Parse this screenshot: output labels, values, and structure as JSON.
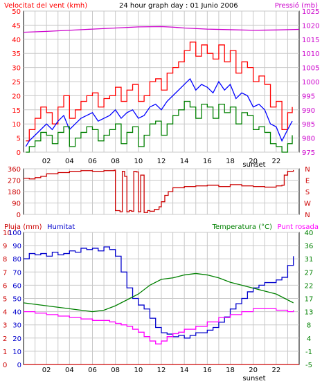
{
  "colors": {
    "background": "#ffffff",
    "frame": "#000000",
    "grid": "#c8c8c8",
    "wind_speed": "#ff0000",
    "wind_avg": "#0000ff",
    "wind_min": "#008000",
    "pressure": "#cc00cc",
    "direction": "#cc0000",
    "humidity": "#0000cc",
    "temperature": "#008000",
    "dewpoint": "#ff00ff",
    "rain": "#cc0000"
  },
  "chart_data": [
    {
      "type": "line",
      "panel": "wind-pressure",
      "title": "24 hour graph day : 01 Junio 2006",
      "left_axis_label": "Velocitat del vent (kmh)",
      "right_axis_label": "Pressió (mb)",
      "x_ticks": [
        "02",
        "04",
        "06",
        "08",
        "10",
        "12",
        "14",
        "16",
        "18",
        "20",
        "22"
      ],
      "x_marker": "sunset",
      "x_range": [
        0,
        24
      ],
      "ylim": [
        0,
        50
      ],
      "yticks": [
        0,
        5,
        10,
        15,
        20,
        25,
        30,
        35,
        40,
        45,
        50
      ],
      "y2lim": [
        975,
        1025
      ],
      "y2ticks": [
        975,
        980,
        985,
        990,
        995,
        1000,
        1005,
        1010,
        1015,
        1020,
        1025
      ],
      "grid": true,
      "series": [
        {
          "key": "gust",
          "color": "wind_speed",
          "axis": "left",
          "step": true,
          "x": [
            0.2,
            0.5,
            1.0,
            1.5,
            2.0,
            2.5,
            3.0,
            3.5,
            4.0,
            4.5,
            5.0,
            5.5,
            6.0,
            6.5,
            7.0,
            7.5,
            8.0,
            8.5,
            9.0,
            9.5,
            10.0,
            10.5,
            11.0,
            11.5,
            12.0,
            12.5,
            13.0,
            13.5,
            14.0,
            14.5,
            15.0,
            15.5,
            16.0,
            16.5,
            17.0,
            17.5,
            18.0,
            18.5,
            19.0,
            19.5,
            20.0,
            20.5,
            21.0,
            21.5,
            22.0,
            22.5,
            23.0,
            23.4
          ],
          "y": [
            4,
            8,
            12,
            16,
            14,
            10,
            16,
            20,
            12,
            15,
            18,
            20,
            21,
            16,
            19,
            20,
            23,
            18,
            22,
            24,
            18,
            20,
            25,
            26,
            22,
            28,
            30,
            32,
            36,
            39,
            34,
            38,
            35,
            33,
            38,
            32,
            36,
            28,
            32,
            30,
            25,
            27,
            24,
            16,
            18,
            8,
            14,
            16
          ]
        },
        {
          "key": "avg",
          "color": "wind_avg",
          "axis": "left",
          "step": false,
          "x": [
            0.2,
            0.5,
            1.0,
            1.5,
            2.0,
            2.5,
            3.0,
            3.5,
            4.0,
            4.5,
            5.0,
            5.5,
            6.0,
            6.5,
            7.0,
            7.5,
            8.0,
            8.5,
            9.0,
            9.5,
            10.0,
            10.5,
            11.0,
            11.5,
            12.0,
            12.5,
            13.0,
            13.5,
            14.0,
            14.5,
            15.0,
            15.5,
            16.0,
            16.5,
            17.0,
            17.5,
            18.0,
            18.5,
            19.0,
            19.5,
            20.0,
            20.5,
            21.0,
            21.5,
            22.0,
            22.5,
            23.0,
            23.4
          ],
          "y": [
            2,
            4,
            6,
            8,
            10,
            8,
            11,
            13,
            8,
            10,
            12,
            13,
            14,
            11,
            12,
            13,
            15,
            12,
            14,
            15,
            12,
            13,
            16,
            17,
            15,
            18,
            20,
            22,
            24,
            26,
            22,
            24,
            23,
            21,
            25,
            22,
            24,
            19,
            21,
            20,
            16,
            17,
            15,
            10,
            9,
            4,
            8,
            11
          ]
        },
        {
          "key": "low",
          "color": "wind_min",
          "axis": "left",
          "step": true,
          "x": [
            0.2,
            0.5,
            1.0,
            1.5,
            2.0,
            2.5,
            3.0,
            3.5,
            4.0,
            4.5,
            5.0,
            5.5,
            6.0,
            6.5,
            7.0,
            7.5,
            8.0,
            8.5,
            9.0,
            9.5,
            10.0,
            10.5,
            11.0,
            11.5,
            12.0,
            12.5,
            13.0,
            13.5,
            14.0,
            14.5,
            15.0,
            15.5,
            16.0,
            16.5,
            17.0,
            17.5,
            18.0,
            18.5,
            19.0,
            19.5,
            20.0,
            20.5,
            21.0,
            21.5,
            22.0,
            22.5,
            23.0,
            23.4
          ],
          "y": [
            0,
            2,
            4,
            7,
            6,
            3,
            7,
            9,
            2,
            5,
            7,
            9,
            8,
            4,
            6,
            8,
            10,
            3,
            7,
            9,
            2,
            6,
            10,
            11,
            6,
            10,
            13,
            15,
            18,
            16,
            12,
            17,
            16,
            12,
            17,
            14,
            16,
            10,
            14,
            13,
            8,
            9,
            7,
            3,
            2,
            0,
            3,
            6
          ]
        },
        {
          "key": "pressure",
          "color": "pressure",
          "axis": "right",
          "step": false,
          "x": [
            0,
            2,
            4,
            6,
            8,
            10,
            12,
            13,
            14,
            16,
            18,
            20,
            22,
            24
          ],
          "y": [
            1017.5,
            1017.8,
            1018.2,
            1018.6,
            1019.0,
            1019.4,
            1019.5,
            1019.3,
            1019.0,
            1018.6,
            1018.4,
            1018.2,
            1018.3,
            1018.5
          ]
        }
      ]
    },
    {
      "type": "line",
      "panel": "wind-direction",
      "x_range": [
        0,
        24
      ],
      "ylim": [
        0,
        360
      ],
      "yticks": [
        0,
        90,
        180,
        270,
        360
      ],
      "right_labels": [
        "N",
        "W",
        "S",
        "E",
        "N"
      ],
      "grid": true,
      "series": [
        {
          "key": "direction",
          "color": "direction",
          "step": true,
          "x": [
            0,
            0.5,
            1.0,
            1.5,
            2.0,
            3.0,
            4.0,
            5.0,
            6.0,
            7.0,
            7.9,
            8.0,
            8.4,
            8.6,
            8.8,
            9.0,
            9.2,
            9.4,
            9.6,
            9.8,
            10.0,
            10.2,
            10.5,
            10.8,
            11.0,
            11.4,
            11.8,
            12.0,
            12.3,
            12.6,
            13.0,
            14.0,
            15.0,
            16.0,
            17.0,
            18.0,
            19.0,
            20.0,
            21.0,
            22.0,
            22.5,
            22.7,
            23.0,
            23.5
          ],
          "y": [
            285,
            280,
            290,
            300,
            320,
            330,
            340,
            345,
            340,
            345,
            348,
            30,
            20,
            340,
            300,
            20,
            30,
            25,
            340,
            335,
            20,
            310,
            15,
            30,
            25,
            40,
            60,
            100,
            150,
            180,
            210,
            220,
            225,
            230,
            220,
            235,
            225,
            220,
            215,
            225,
            230,
            310,
            340,
            350
          ]
        }
      ]
    },
    {
      "type": "line",
      "panel": "rain-humidity-temperature",
      "left_axis_label": "Pluja (mm)",
      "left2_axis_label": "Humitat",
      "right_axis_label": "Temperatura (°C)",
      "right2_axis_label": "Punt rosada",
      "x_ticks": [
        "02",
        "04",
        "06",
        "08",
        "10",
        "12",
        "14",
        "16",
        "18",
        "20",
        "22"
      ],
      "x_marker": "sunset",
      "x_range": [
        0,
        24
      ],
      "ylim": [
        0,
        100
      ],
      "yticks_rain": [
        0,
        1,
        2,
        3,
        4,
        5,
        6,
        7,
        8,
        9,
        10
      ],
      "yticks_humidity": [
        0,
        10,
        20,
        30,
        40,
        50,
        60,
        70,
        80,
        90,
        100
      ],
      "y2lim": [
        -5,
        40
      ],
      "y2ticks": [
        -5,
        -1,
        4,
        8,
        13,
        17,
        22,
        27,
        31,
        36,
        40
      ],
      "grid": true,
      "series": [
        {
          "key": "humidity",
          "color": "humidity",
          "axis": "humidity",
          "step": true,
          "x": [
            0,
            0.5,
            1.0,
            1.5,
            2.0,
            2.5,
            3.0,
            3.5,
            4.0,
            4.5,
            5.0,
            5.5,
            6.0,
            6.5,
            7.0,
            7.5,
            8.0,
            8.5,
            9.0,
            9.5,
            10.0,
            10.5,
            11.0,
            11.5,
            12.0,
            12.5,
            13.0,
            13.5,
            14.0,
            14.5,
            15.0,
            15.5,
            16.0,
            16.5,
            17.0,
            17.5,
            18.0,
            18.5,
            19.0,
            19.5,
            20.0,
            20.5,
            21.0,
            21.5,
            22.0,
            22.5,
            23.0,
            23.5
          ],
          "y": [
            80,
            84,
            83,
            84,
            82,
            85,
            83,
            84,
            86,
            85,
            88,
            87,
            88,
            86,
            89,
            87,
            82,
            70,
            58,
            50,
            45,
            42,
            35,
            28,
            24,
            23,
            21,
            22,
            20,
            22,
            24,
            24,
            26,
            28,
            32,
            36,
            42,
            46,
            50,
            55,
            58,
            60,
            62,
            62,
            64,
            66,
            75,
            82
          ]
        },
        {
          "key": "temperature",
          "color": "temperature",
          "axis": "right",
          "step": false,
          "x": [
            0,
            1,
            2,
            3,
            4,
            5,
            6,
            7,
            8,
            9,
            10,
            11,
            12,
            13,
            14,
            15,
            16,
            17,
            18,
            19,
            20,
            21,
            22,
            23,
            23.5
          ],
          "y": [
            16,
            15.5,
            15,
            14.5,
            14,
            13.5,
            13,
            13.5,
            15,
            17,
            19,
            22,
            24,
            24.5,
            25.5,
            26,
            25.5,
            24.5,
            23,
            22,
            21,
            20,
            19,
            17,
            16
          ]
        },
        {
          "key": "dewpoint",
          "color": "dewpoint",
          "axis": "right",
          "step": true,
          "x": [
            0,
            1,
            2,
            3,
            4,
            5,
            6,
            7,
            7.5,
            8,
            8.5,
            9,
            9.5,
            10,
            10.5,
            11,
            11.5,
            12,
            12.5,
            13,
            13.5,
            14,
            15,
            16,
            17,
            18,
            19,
            20,
            21,
            22,
            23,
            23.5
          ],
          "y": [
            13,
            12.5,
            12,
            11.5,
            11,
            10.5,
            10,
            10,
            9.5,
            9,
            8.5,
            8,
            7,
            6,
            4.5,
            3,
            2,
            3,
            4.5,
            5.5,
            6,
            7,
            8,
            9.5,
            11,
            12,
            13,
            14,
            14,
            13.5,
            13,
            13.5
          ]
        },
        {
          "key": "rain",
          "color": "rain",
          "axis": "rain",
          "step": false,
          "x": [
            0,
            24
          ],
          "y": [
            0,
            0
          ]
        }
      ]
    }
  ]
}
